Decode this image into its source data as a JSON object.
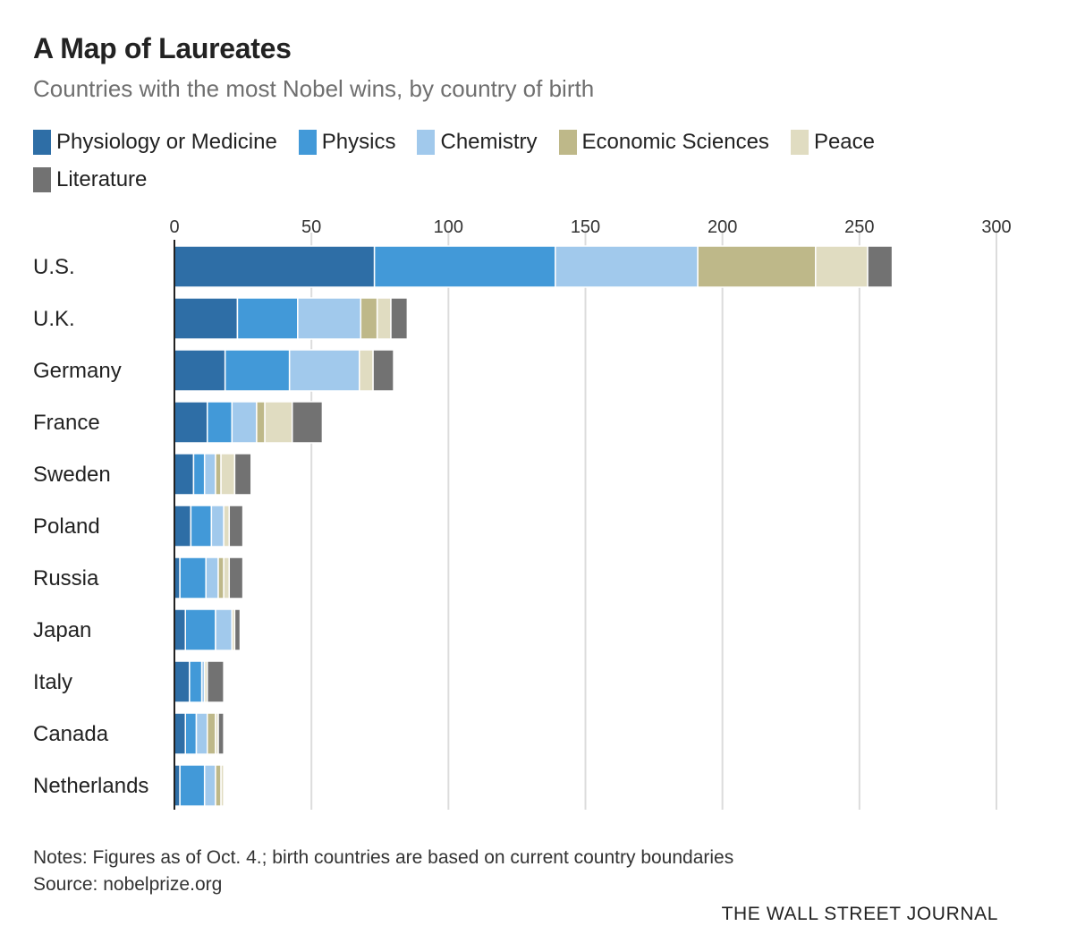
{
  "title": "A Map of Laureates",
  "subtitle": "Countries with the most Nobel wins, by country of birth",
  "notes": "Notes: Figures as of Oct. 4.; birth countries are based on current country boundaries",
  "source": "Source: nobelprize.org",
  "brand": "THE WALL STREET JOURNAL",
  "colors": {
    "Physiology or Medicine": "#2e6ea6",
    "Physics": "#4299d8",
    "Chemistry": "#a1c9ec",
    "Economic Sciences": "#beb889",
    "Peace": "#e0dcc1",
    "Literature": "#727272"
  },
  "legend": [
    {
      "label": "Physiology or Medicine"
    },
    {
      "label": "Physics"
    },
    {
      "label": "Chemistry"
    },
    {
      "label": "Economic Sciences"
    },
    {
      "label": "Peace"
    },
    {
      "label": "Literature"
    }
  ],
  "chart_data": {
    "type": "bar",
    "orientation": "horizontal",
    "stacked": true,
    "title": "A Map of Laureates",
    "subtitle": "Countries with the most Nobel wins, by country of birth",
    "categories": [
      "U.S.",
      "U.K.",
      "Germany",
      "France",
      "Sweden",
      "Poland",
      "Russia",
      "Japan",
      "Italy",
      "Canada",
      "Netherlands"
    ],
    "xlim": [
      0,
      300
    ],
    "xticks": [
      "0",
      "50",
      "100",
      "150",
      "200",
      "250",
      "300"
    ],
    "grid": true,
    "legend_position": "top",
    "series": [
      {
        "name": "Physiology or Medicine",
        "values": [
          73,
          23,
          18.5,
          12,
          7,
          6,
          2,
          4,
          5.5,
          4,
          2
        ]
      },
      {
        "name": "Physics",
        "values": [
          66,
          22,
          23.5,
          9,
          4,
          7.5,
          9.5,
          11,
          4.5,
          4,
          9
        ]
      },
      {
        "name": "Chemistry",
        "values": [
          52,
          23,
          25.5,
          9,
          4,
          4.5,
          4.5,
          6,
          1,
          4,
          4
        ]
      },
      {
        "name": "Economic Sciences",
        "values": [
          43,
          6,
          0,
          3,
          2,
          0,
          2,
          0,
          0,
          3,
          2
        ]
      },
      {
        "name": "Peace",
        "values": [
          19,
          5,
          5,
          10,
          5,
          2,
          2,
          1,
          1,
          1,
          1
        ]
      },
      {
        "name": "Literature",
        "values": [
          9,
          6,
          7.5,
          11,
          6,
          5,
          5,
          2,
          6,
          2,
          0
        ]
      }
    ]
  }
}
